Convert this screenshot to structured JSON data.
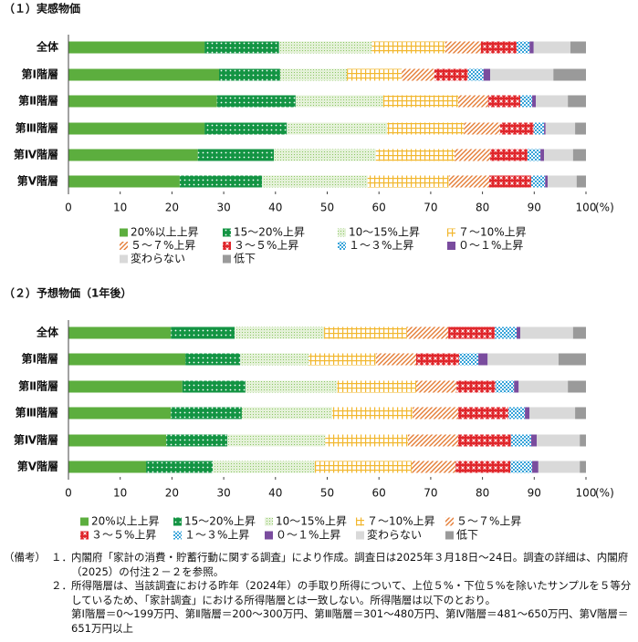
{
  "chart_data": [
    {
      "type": "bar",
      "orientation": "horizontal",
      "stacked": true,
      "title": "（１）実感物価",
      "categories": [
        "全体",
        "第Ⅰ階層",
        "第Ⅱ階層",
        "第Ⅲ階層",
        "第Ⅳ階層",
        "第Ⅴ階層"
      ],
      "series": [
        {
          "name": "20%以上上昇",
          "color": "#5cae3e",
          "values": [
            26.3,
            29.1,
            28.7,
            26.3,
            25.0,
            21.5
          ]
        },
        {
          "name": "15～20%上昇",
          "color": "#139443",
          "values": [
            14.4,
            11.8,
            15.2,
            15.9,
            14.7,
            15.9
          ]
        },
        {
          "name": "10～15%上昇",
          "color": "#8cc765",
          "values": [
            17.9,
            12.9,
            16.9,
            19.4,
            19.7,
            20.4
          ]
        },
        {
          "name": "７～10%上昇",
          "color": "#f2b72e",
          "values": [
            14.2,
            10.6,
            14.5,
            14.8,
            15.2,
            15.7
          ]
        },
        {
          "name": "５～７%上昇",
          "color": "#e47c35",
          "values": [
            6.9,
            6.3,
            5.8,
            7.0,
            6.9,
            7.8
          ]
        },
        {
          "name": "３～５%上昇",
          "color": "#e0262b",
          "values": [
            6.9,
            6.5,
            6.2,
            6.5,
            7.2,
            8.1
          ]
        },
        {
          "name": "１～３%上昇",
          "color": "#37a3d9",
          "values": [
            2.5,
            3.0,
            2.3,
            2.0,
            2.5,
            2.7
          ]
        },
        {
          "name": "０～１%上昇",
          "color": "#7a4c9e",
          "values": [
            0.8,
            1.3,
            0.7,
            0.3,
            0.7,
            0.5
          ]
        },
        {
          "name": "変わらない",
          "color": "#d9d9d9",
          "values": [
            7.1,
            12.2,
            6.2,
            5.7,
            5.6,
            5.6
          ]
        },
        {
          "name": "低下",
          "color": "#9a9a9a",
          "values": [
            3.0,
            6.3,
            3.5,
            2.1,
            2.5,
            1.8
          ]
        }
      ],
      "xlim": [
        0,
        100
      ],
      "xticks": [
        0,
        10,
        20,
        30,
        40,
        50,
        60,
        70,
        80,
        90,
        100
      ],
      "xlabel": "(%)",
      "grid": false
    },
    {
      "type": "bar",
      "orientation": "horizontal",
      "stacked": true,
      "title": "（２）予想物価（1年後）",
      "categories": [
        "全体",
        "第Ⅰ階層",
        "第Ⅱ階層",
        "第Ⅲ階層",
        "第Ⅳ階層",
        "第Ⅴ階層"
      ],
      "series": [
        {
          "name": "20%以上上昇",
          "color": "#5cae3e",
          "values": [
            19.8,
            22.6,
            22.0,
            19.8,
            18.9,
            15.0
          ]
        },
        {
          "name": "15～20%上昇",
          "color": "#139443",
          "values": [
            12.3,
            10.6,
            12.2,
            13.7,
            11.8,
            12.9
          ]
        },
        {
          "name": "10～15%上昇",
          "color": "#8cc765",
          "values": [
            17.3,
            13.2,
            17.7,
            17.5,
            18.9,
            19.7
          ]
        },
        {
          "name": "７～10%上昇",
          "color": "#f2b72e",
          "values": [
            16.0,
            13.0,
            15.3,
            15.5,
            16.0,
            18.7
          ]
        },
        {
          "name": "５～７%上昇",
          "color": "#e47c35",
          "values": [
            8.0,
            7.8,
            7.8,
            8.8,
            9.7,
            8.5
          ]
        },
        {
          "name": "３～５%上昇",
          "color": "#e0262b",
          "values": [
            9.0,
            8.3,
            7.5,
            9.7,
            10.2,
            10.6
          ]
        },
        {
          "name": "１～３%上昇",
          "color": "#37a3d9",
          "values": [
            4.2,
            3.7,
            3.6,
            3.2,
            3.9,
            4.2
          ]
        },
        {
          "name": "０～１%上昇",
          "color": "#7a4c9e",
          "values": [
            0.7,
            1.8,
            0.9,
            0.9,
            1.1,
            1.2
          ]
        },
        {
          "name": "変わらない",
          "color": "#d9d9d9",
          "values": [
            10.2,
            13.7,
            9.5,
            8.8,
            8.3,
            8.0
          ]
        },
        {
          "name": "低下",
          "color": "#9a9a9a",
          "values": [
            2.5,
            5.3,
            3.5,
            2.1,
            1.2,
            1.2
          ]
        }
      ],
      "xlim": [
        0,
        100
      ],
      "xticks": [
        0,
        10,
        20,
        30,
        40,
        50,
        60,
        70,
        80,
        90,
        100
      ],
      "xlabel": "(%)",
      "grid": false
    }
  ],
  "notes": {
    "label": "（備考）",
    "items": [
      {
        "num": "１．",
        "text": "内閣府「家計の消費・貯蓄行動に関する調査」により作成。調査日は2025年３月18日～24日。調査の詳細は、内閣府（2025）の付注２－２を参照。"
      },
      {
        "num": "２．",
        "text": "所得階層は、当該調査における昨年（2024年）の手取り所得について、上位５%・下位５%を除いたサンプルを５等分しているため、「家計調査」における所得階層とは一致しない。所得階層は以下のとおり。",
        "detail": "第Ⅰ階層＝0～199万円、第Ⅱ階層＝200～300万円、第Ⅲ階層＝301～480万円、第Ⅳ階層＝481～650万円、第Ⅴ階層＝651万円以上"
      }
    ]
  }
}
